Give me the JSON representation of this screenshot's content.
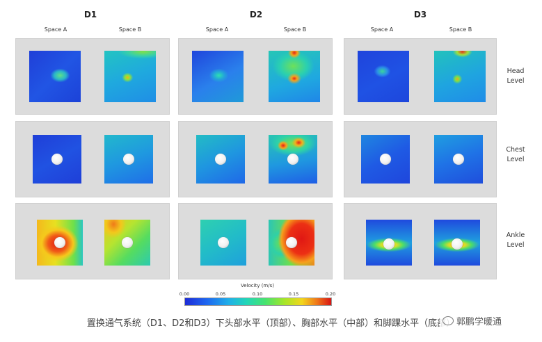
{
  "groups": [
    {
      "title": "D1",
      "space_a": "Space A",
      "space_b": "Space B"
    },
    {
      "title": "D2",
      "space_a": "Space A",
      "space_b": "Space B"
    },
    {
      "title": "D3",
      "space_a": "Space A",
      "space_b": "Space B"
    }
  ],
  "rows": [
    {
      "label_line1": "Head",
      "label_line2": "Level"
    },
    {
      "label_line1": "Chest",
      "label_line2": "Level"
    },
    {
      "label_line1": "Ankle",
      "label_line2": "Level"
    }
  ],
  "colorbar": {
    "title": "Velocity (m/s)",
    "ticks": [
      "0.00",
      "0.05",
      "0.10",
      "0.15",
      "0.20"
    ],
    "range": [
      0.0,
      0.2
    ],
    "colors": [
      "#1d2bd6",
      "#1fb0e8",
      "#47e36e",
      "#f2d61d",
      "#d81414"
    ]
  },
  "caption": "置换通气系统（D1、D2和D3）下头部水平（顶部）、胸部水平（中部）和脚踝水平（底部）",
  "watermark": {
    "icon": "wechat-icon",
    "text": "郭鹏学暖通"
  }
}
